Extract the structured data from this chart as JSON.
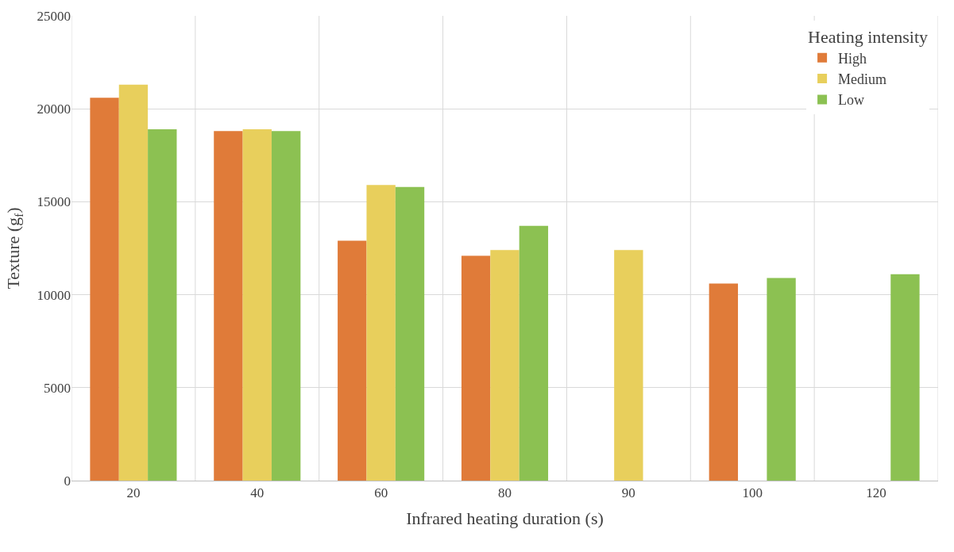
{
  "chart_data": {
    "type": "bar",
    "xlabel": "Infrared heating duration (s)",
    "ylabel": "Texture (g$_{f}$)",
    "legend_title": "Heating intensity",
    "categories": [
      "20",
      "40",
      "60",
      "80",
      "90",
      "100",
      "120"
    ],
    "series": [
      {
        "name": "High",
        "color": "#e07b39",
        "values": [
          20600,
          18800,
          12900,
          12100,
          null,
          10600,
          null
        ]
      },
      {
        "name": "Medium",
        "color": "#e8cf5c",
        "values": [
          21300,
          18900,
          15900,
          12400,
          12400,
          null,
          null
        ]
      },
      {
        "name": "Low",
        "color": "#8cc152",
        "values": [
          18900,
          18800,
          15800,
          13700,
          null,
          10900,
          11100
        ]
      }
    ],
    "ylim": [
      0,
      25000
    ],
    "yticks": [
      0,
      5000,
      10000,
      15000,
      20000,
      25000
    ],
    "grid": true,
    "legend": "top right"
  }
}
